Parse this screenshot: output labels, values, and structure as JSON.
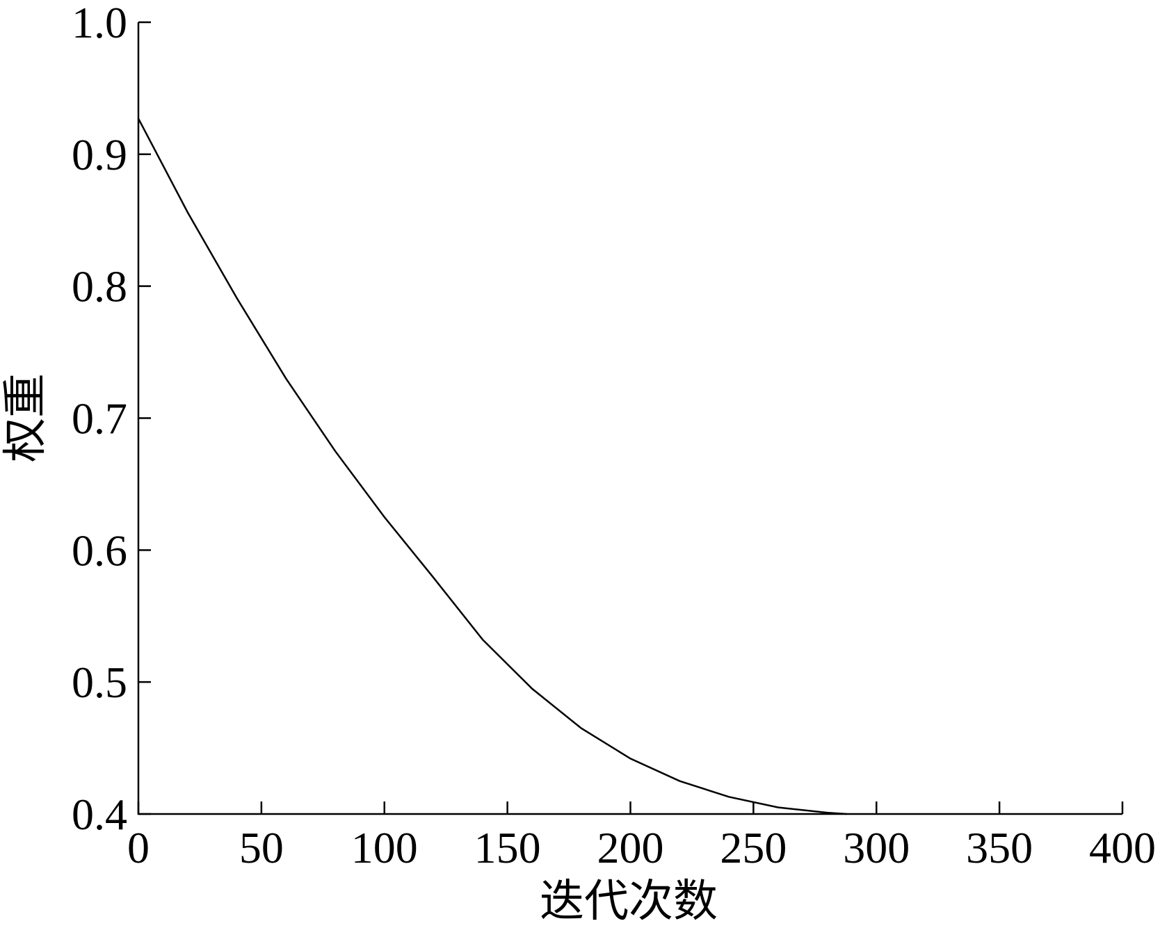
{
  "chart_data": {
    "type": "line",
    "xlabel": "迭代次数",
    "ylabel": "权重",
    "x": [
      0,
      20,
      40,
      60,
      80,
      100,
      120,
      140,
      160,
      180,
      200,
      220,
      240,
      260,
      280,
      288
    ],
    "series": [
      {
        "color": "#000000",
        "values": [
          0.927,
          0.856,
          0.791,
          0.73,
          0.675,
          0.625,
          0.579,
          0.532,
          0.495,
          0.465,
          0.442,
          0.425,
          0.413,
          0.405,
          0.401,
          0.4
        ]
      }
    ],
    "xlim": [
      0,
      400
    ],
    "xticks": [
      0,
      50,
      100,
      150,
      200,
      250,
      300,
      350,
      400
    ],
    "ylim": [
      0.4,
      1.0
    ],
    "yticks": [
      0.4,
      0.5,
      0.6,
      0.7,
      0.8,
      0.9,
      {
        "value": 1,
        "label": "1.0"
      }
    ],
    "grid": false
  }
}
